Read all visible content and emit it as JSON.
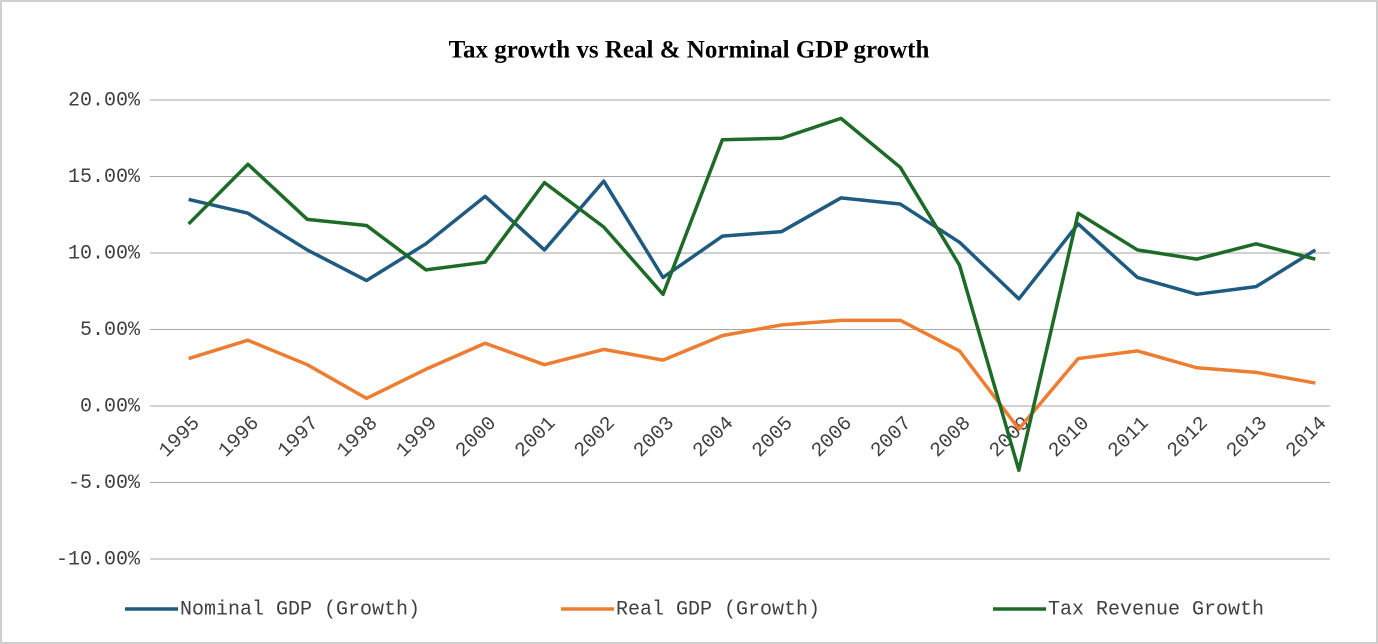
{
  "chart_data": {
    "type": "line",
    "title": "Tax growth vs Real & Norminal GDP growth",
    "categories": [
      "1995",
      "1996",
      "1997",
      "1998",
      "1999",
      "2000",
      "2001",
      "2002",
      "2003",
      "2004",
      "2005",
      "2006",
      "2007",
      "2008",
      "2009",
      "2010",
      "2011",
      "2012",
      "2013",
      "2014"
    ],
    "series": [
      {
        "name": "Nominal GDP (Growth)",
        "color": "#1f5b80",
        "values": [
          13.5,
          12.6,
          10.2,
          8.2,
          10.6,
          13.7,
          10.2,
          14.7,
          8.4,
          11.1,
          11.4,
          13.6,
          13.2,
          10.7,
          7.0,
          11.9,
          8.4,
          7.3,
          7.8,
          10.2
        ]
      },
      {
        "name": "Real GDP (Growth)",
        "color": "#ed7d31",
        "values": [
          3.1,
          4.3,
          2.7,
          0.5,
          2.4,
          4.1,
          2.7,
          3.7,
          3.0,
          4.6,
          5.3,
          5.6,
          5.6,
          3.6,
          -1.5,
          3.1,
          3.6,
          2.5,
          2.2,
          1.5
        ]
      },
      {
        "name": "Tax Revenue Growth",
        "color": "#1e6b27",
        "values": [
          11.9,
          15.8,
          12.2,
          11.8,
          8.9,
          9.4,
          14.6,
          11.7,
          7.3,
          17.4,
          17.5,
          18.8,
          15.6,
          9.2,
          -4.2,
          12.6,
          10.2,
          9.6,
          10.6,
          9.6
        ]
      }
    ],
    "ylim": [
      -10,
      20
    ],
    "yticks": [
      {
        "value": -10,
        "label": "-10.00%"
      },
      {
        "value": -5,
        "label": "-5.00%"
      },
      {
        "value": 0,
        "label": "0.00%"
      },
      {
        "value": 5,
        "label": "5.00%"
      },
      {
        "value": 10,
        "label": "10.00%"
      },
      {
        "value": 15,
        "label": "15.00%"
      },
      {
        "value": 20,
        "label": "20.00%"
      }
    ],
    "grid": true,
    "legend": "bottom"
  }
}
